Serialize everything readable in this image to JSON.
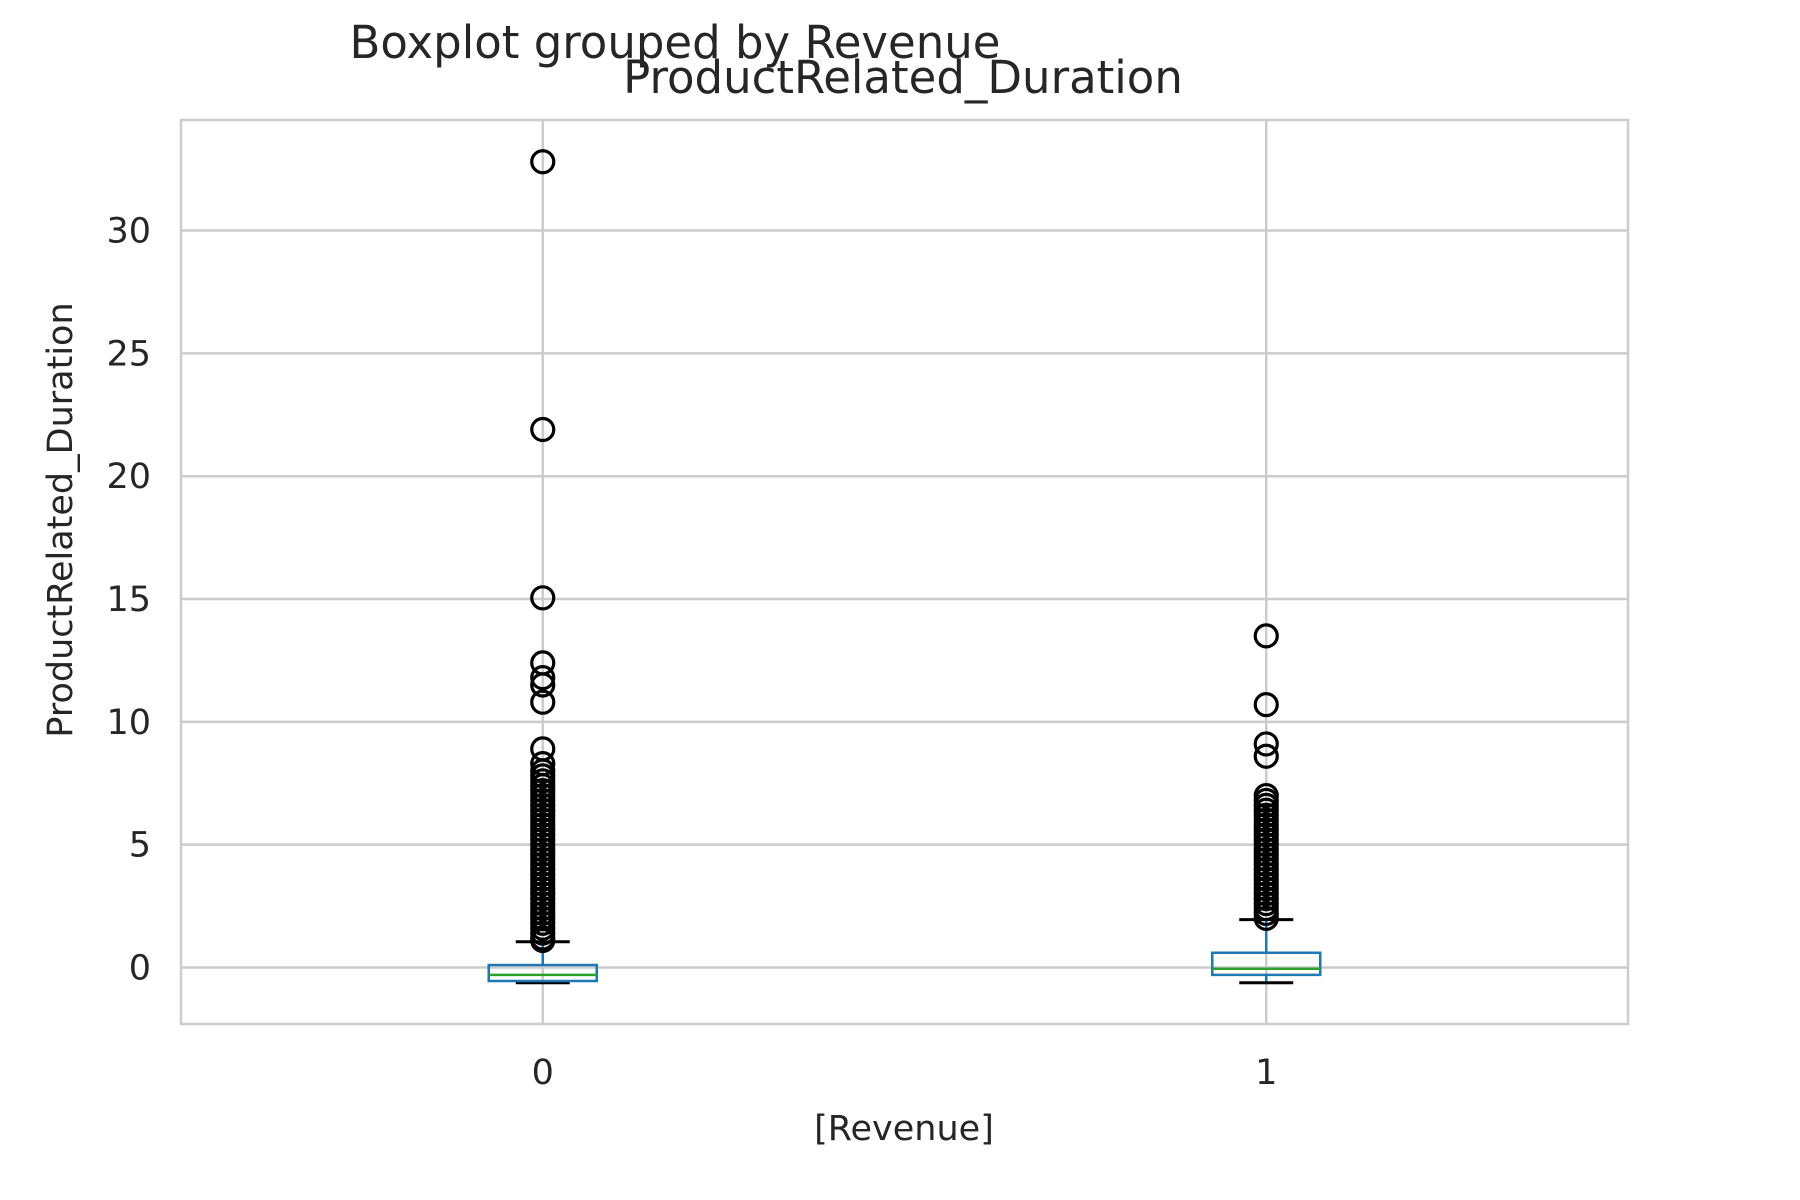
{
  "chart_data": {
    "type": "boxplot",
    "suptitle": "Boxplot grouped by Revenue",
    "title": "ProductRelated_Duration",
    "xlabel": "[Revenue]",
    "ylabel": "ProductRelated_Duration",
    "ylim": [
      -2.3,
      34.5
    ],
    "yticks": [
      0,
      5,
      10,
      15,
      20,
      25,
      30
    ],
    "grid": true,
    "categories": [
      "0",
      "1"
    ],
    "box_color": "#1f77b4",
    "median_color": "#2ca02c",
    "flier_color": "#000000",
    "boxes": [
      {
        "category": "0",
        "whisker_low": -0.62,
        "q1": -0.55,
        "median": -0.3,
        "q3": 0.1,
        "whisker_high": 1.05,
        "outliers": [
          32.8,
          21.9,
          15.05,
          12.4,
          11.8,
          11.5,
          10.8,
          8.9,
          8.3,
          8.0,
          7.8,
          7.6,
          7.4,
          7.2,
          7.0,
          6.8,
          6.6,
          6.4,
          6.2,
          6.0,
          5.8,
          5.6,
          5.4,
          5.2,
          5.0,
          4.8,
          4.6,
          4.4,
          4.2,
          4.0,
          3.8,
          3.6,
          3.4,
          3.2,
          3.0,
          2.8,
          2.6,
          2.4,
          2.2,
          2.0,
          1.8,
          1.6,
          1.4,
          1.2,
          1.1
        ]
      },
      {
        "category": "1",
        "whisker_low": -0.62,
        "q1": -0.3,
        "median": -0.05,
        "q3": 0.6,
        "whisker_high": 1.95,
        "outliers": [
          13.5,
          10.7,
          9.1,
          8.6,
          7.0,
          6.8,
          6.6,
          6.4,
          6.2,
          6.0,
          5.8,
          5.6,
          5.4,
          5.2,
          5.0,
          4.8,
          4.6,
          4.4,
          4.2,
          4.0,
          3.8,
          3.6,
          3.4,
          3.2,
          3.0,
          2.8,
          2.6,
          2.4,
          2.2,
          2.0
        ]
      }
    ]
  }
}
